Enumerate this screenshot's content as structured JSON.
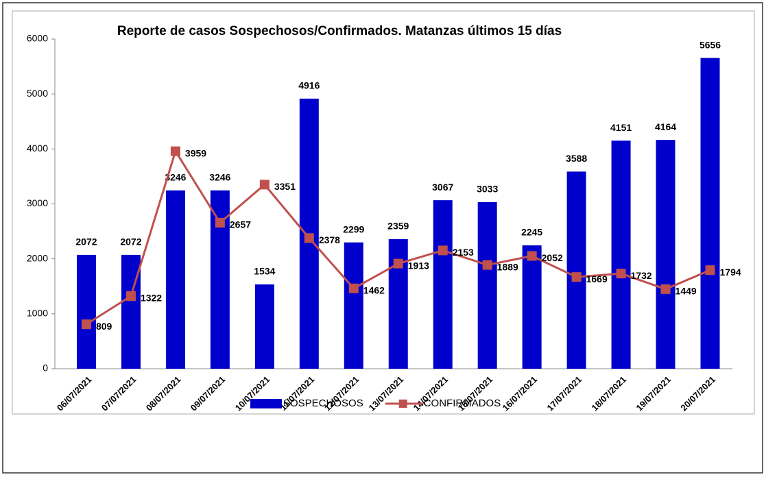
{
  "chart_data": {
    "type": "bar",
    "title": "Reporte de casos Sospechosos/Confirmados. Matanzas últimos 15 días",
    "categories": [
      "06/07/2021",
      "07/07/2021",
      "08/07/2021",
      "09/07/2021",
      "10/07/2021",
      "11/07/2021",
      "12/07/2021",
      "13/07/2021",
      "14/07/2021",
      "15/07/2021",
      "16/07/2021",
      "17/07/2021",
      "18/07/2021",
      "19/07/2021",
      "20/07/2021"
    ],
    "series": [
      {
        "name": "SOSPECHOSOS",
        "type": "bar",
        "color": "#0000cc",
        "values": [
          2072,
          2072,
          3246,
          3246,
          1534,
          4916,
          2299,
          2359,
          3067,
          3033,
          2245,
          3588,
          4151,
          4164,
          5656
        ]
      },
      {
        "name": "CONFIRMADOS",
        "type": "line",
        "color": "#c0504d",
        "values": [
          809,
          1322,
          3959,
          2657,
          3351,
          2378,
          1462,
          1913,
          2153,
          1889,
          2052,
          1669,
          1732,
          1449,
          1794
        ]
      }
    ],
    "ylim": [
      0,
      6000
    ],
    "yticks": [
      0,
      1000,
      2000,
      3000,
      4000,
      5000,
      6000
    ],
    "legend": "bottom"
  }
}
